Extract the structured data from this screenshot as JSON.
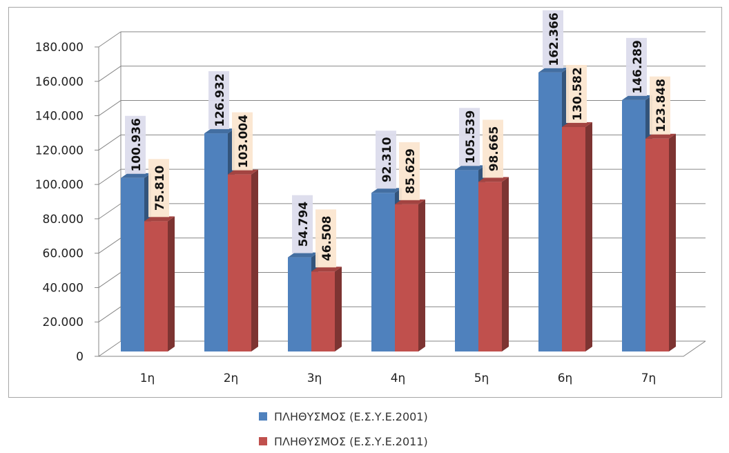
{
  "chart_data": {
    "type": "bar",
    "categories": [
      "1η",
      "2η",
      "3η",
      "4η",
      "5η",
      "6η",
      "7η"
    ],
    "series": [
      {
        "name": "ΠΛΗΘΥΣΜΟΣ (Ε.Σ.Υ.Ε.2001)",
        "values": [
          100936,
          126932,
          54794,
          92310,
          105539,
          162366,
          146289
        ],
        "labels": [
          "100.936",
          "126.932",
          "54.794",
          "92.310",
          "105.539",
          "162.366",
          "146.289"
        ],
        "color": "#4f81bd"
      },
      {
        "name": "ΠΛΗΘΥΣΜΟΣ (Ε.Σ.Υ.Ε.2011)",
        "values": [
          75810,
          103004,
          46508,
          85629,
          98665,
          130582,
          123848
        ],
        "labels": [
          "75.810",
          "103.004",
          "46.508",
          "85.629",
          "98.665",
          "130.582",
          "123.848"
        ],
        "color": "#c0504d"
      }
    ],
    "yticks": [
      0,
      20000,
      40000,
      60000,
      80000,
      100000,
      120000,
      140000,
      160000,
      180000
    ],
    "ytick_labels": [
      "0",
      "20.000",
      "40.000",
      "60.000",
      "80.000",
      "100.000",
      "120.000",
      "140.000",
      "160.000",
      "180.000"
    ],
    "ylim": [
      0,
      180000
    ],
    "grid": true,
    "legend_position": "bottom",
    "style": "3d-clustered-column"
  }
}
